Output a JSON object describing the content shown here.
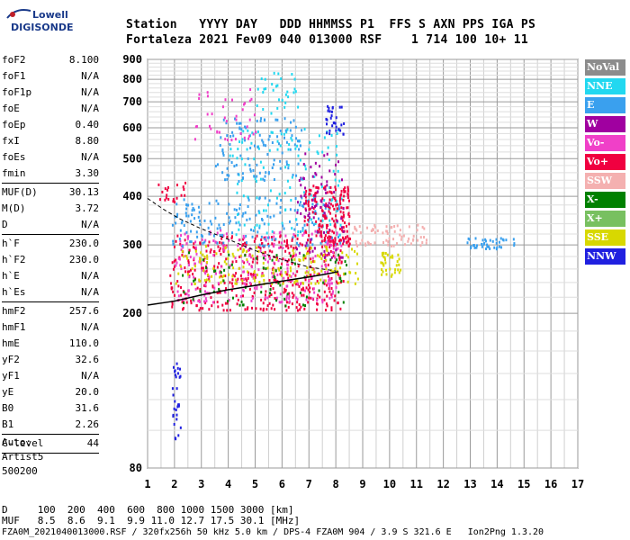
{
  "logo": {
    "line1": "Lowell",
    "line2": "DIGISONDE"
  },
  "header": {
    "labels": "Station   YYYY DAY   DDD HHMMSS P1  FFS S AXN PPS IGA PS",
    "values": "Fortaleza 2021 Fev09 040 013000 RSF    1 714 100 10+ 11"
  },
  "params": {
    "group1": [
      {
        "name": "foF2",
        "value": "8.100"
      },
      {
        "name": "foF1",
        "value": "N/A"
      },
      {
        "name": "foF1p",
        "value": "N/A"
      },
      {
        "name": "foE",
        "value": "N/A"
      },
      {
        "name": "foEp",
        "value": "0.40"
      },
      {
        "name": "fxI",
        "value": "8.80"
      },
      {
        "name": "foEs",
        "value": "N/A"
      },
      {
        "name": "fmin",
        "value": "3.30"
      }
    ],
    "group2": [
      {
        "name": "MUF(D)",
        "value": "30.13"
      },
      {
        "name": "M(D)",
        "value": "3.72"
      },
      {
        "name": "D",
        "value": "N/A"
      }
    ],
    "group3": [
      {
        "name": "h`F",
        "value": "230.0"
      },
      {
        "name": "h`F2",
        "value": "230.0"
      },
      {
        "name": "h`E",
        "value": "N/A"
      },
      {
        "name": "h`Es",
        "value": "N/A"
      }
    ],
    "group4": [
      {
        "name": "hmF2",
        "value": "257.6"
      },
      {
        "name": "hmF1",
        "value": "N/A"
      },
      {
        "name": "hmE",
        "value": "110.0"
      },
      {
        "name": "yF2",
        "value": "32.6"
      },
      {
        "name": "yF1",
        "value": "N/A"
      },
      {
        "name": "yE",
        "value": "20.0"
      },
      {
        "name": "B0",
        "value": "31.6"
      },
      {
        "name": "B1",
        "value": "2.26"
      }
    ],
    "group5": [
      {
        "name": "C-level",
        "value": "44"
      }
    ]
  },
  "auto": {
    "line1": "Auto:",
    "line2": "Artist5",
    "line3": "500200"
  },
  "legend": [
    {
      "label": "NoVal",
      "color": "#8c8c8c"
    },
    {
      "label": "NNE",
      "color": "#22d8f0"
    },
    {
      "label": "E",
      "color": "#3aa0ee"
    },
    {
      "label": "W",
      "color": "#a000a0"
    },
    {
      "label": "Vo-",
      "color": "#f040c8"
    },
    {
      "label": "Vo+",
      "color": "#f00040"
    },
    {
      "label": "SSW",
      "color": "#f4b0b0"
    },
    {
      "label": "X-",
      "color": "#008000"
    },
    {
      "label": "X+",
      "color": "#78c060"
    },
    {
      "label": "SSE",
      "color": "#d8d800"
    },
    {
      "label": "NNW",
      "color": "#2020e0"
    }
  ],
  "footer": {
    "d_row": "D     100  200  400  600  800 1000 1500 3000 [km]",
    "muf_row": "MUF   8.5  8.6  9.1  9.9 11.0 12.7 17.5 30.1 [MHz]",
    "status": "FZA0M_2021040013000.RSF / 320fx256h 50 kHz 5.0 km / DPS-4 FZA0M 904 / 3.9 S 321.6 E   Ion2Png 1.3.20"
  },
  "chart_data": {
    "type": "scatter",
    "title": "",
    "xlabel": "",
    "ylabel": "",
    "xlim": [
      1,
      17
    ],
    "ylim": [
      80,
      900
    ],
    "y_scale": "log",
    "x_ticks": [
      1,
      2,
      3,
      4,
      5,
      6,
      7,
      8,
      9,
      10,
      11,
      12,
      13,
      14,
      15,
      16,
      17
    ],
    "y_ticks": [
      80,
      200,
      300,
      400,
      500,
      600,
      700,
      800,
      900
    ],
    "grid": true,
    "clusters": [
      {
        "color": "#f00040",
        "x": [
          1.8,
          8.3
        ],
        "y": [
          205,
          320
        ],
        "n": 420
      },
      {
        "color": "#f040c8",
        "x": [
          2.0,
          8.2
        ],
        "y": [
          215,
          330
        ],
        "n": 260
      },
      {
        "color": "#d8d800",
        "x": [
          2.0,
          8.8
        ],
        "y": [
          240,
          300
        ],
        "n": 160
      },
      {
        "color": "#008000",
        "x": [
          2.2,
          8.5
        ],
        "y": [
          210,
          290
        ],
        "n": 70
      },
      {
        "color": "#3aa0ee",
        "x": [
          1.9,
          8.2
        ],
        "y": [
          300,
          400
        ],
        "n": 170
      },
      {
        "color": "#22d8f0",
        "x": [
          4.0,
          8.2
        ],
        "y": [
          320,
          600
        ],
        "n": 140
      },
      {
        "color": "#f00040",
        "x": [
          6.8,
          8.5
        ],
        "y": [
          300,
          430
        ],
        "n": 180
      },
      {
        "color": "#a000a0",
        "x": [
          6.5,
          8.3
        ],
        "y": [
          280,
          520
        ],
        "n": 80
      },
      {
        "color": "#f4b0b0",
        "x": [
          8.6,
          11.4
        ],
        "y": [
          300,
          340
        ],
        "n": 70
      },
      {
        "color": "#d8d800",
        "x": [
          9.6,
          10.4
        ],
        "y": [
          250,
          290
        ],
        "n": 35
      },
      {
        "color": "#3aa0ee",
        "x": [
          12.8,
          14.7
        ],
        "y": [
          295,
          315
        ],
        "n": 40
      },
      {
        "color": "#2020e0",
        "x": [
          1.9,
          2.2
        ],
        "y": [
          95,
          150
        ],
        "n": 30
      },
      {
        "color": "#3aa0ee",
        "x": [
          3.5,
          6.7
        ],
        "y": [
          440,
          640
        ],
        "n": 110
      },
      {
        "color": "#f040c8",
        "x": [
          2.6,
          5.0
        ],
        "y": [
          560,
          760
        ],
        "n": 40
      },
      {
        "color": "#22d8f0",
        "x": [
          5.0,
          6.6
        ],
        "y": [
          640,
          840
        ],
        "n": 30
      },
      {
        "color": "#2020e0",
        "x": [
          7.6,
          8.3
        ],
        "y": [
          580,
          690
        ],
        "n": 30
      },
      {
        "color": "#f00040",
        "x": [
          1.3,
          2.4
        ],
        "y": [
          390,
          440
        ],
        "n": 20
      }
    ],
    "trace": [
      {
        "x": 1.0,
        "y": 210
      },
      {
        "x": 2.0,
        "y": 215
      },
      {
        "x": 3.0,
        "y": 223
      },
      {
        "x": 4.0,
        "y": 230
      },
      {
        "x": 5.0,
        "y": 236
      },
      {
        "x": 6.0,
        "y": 242
      },
      {
        "x": 7.0,
        "y": 248
      },
      {
        "x": 7.6,
        "y": 252
      },
      {
        "x": 8.1,
        "y": 256
      }
    ],
    "dashed_trace": [
      {
        "x": 1.0,
        "y": 395
      },
      {
        "x": 1.6,
        "y": 370
      },
      {
        "x": 2.2,
        "y": 350
      },
      {
        "x": 3.0,
        "y": 330
      },
      {
        "x": 4.0,
        "y": 310
      },
      {
        "x": 5.0,
        "y": 290
      },
      {
        "x": 6.0,
        "y": 275
      },
      {
        "x": 7.0,
        "y": 263
      },
      {
        "x": 8.0,
        "y": 257
      }
    ]
  }
}
